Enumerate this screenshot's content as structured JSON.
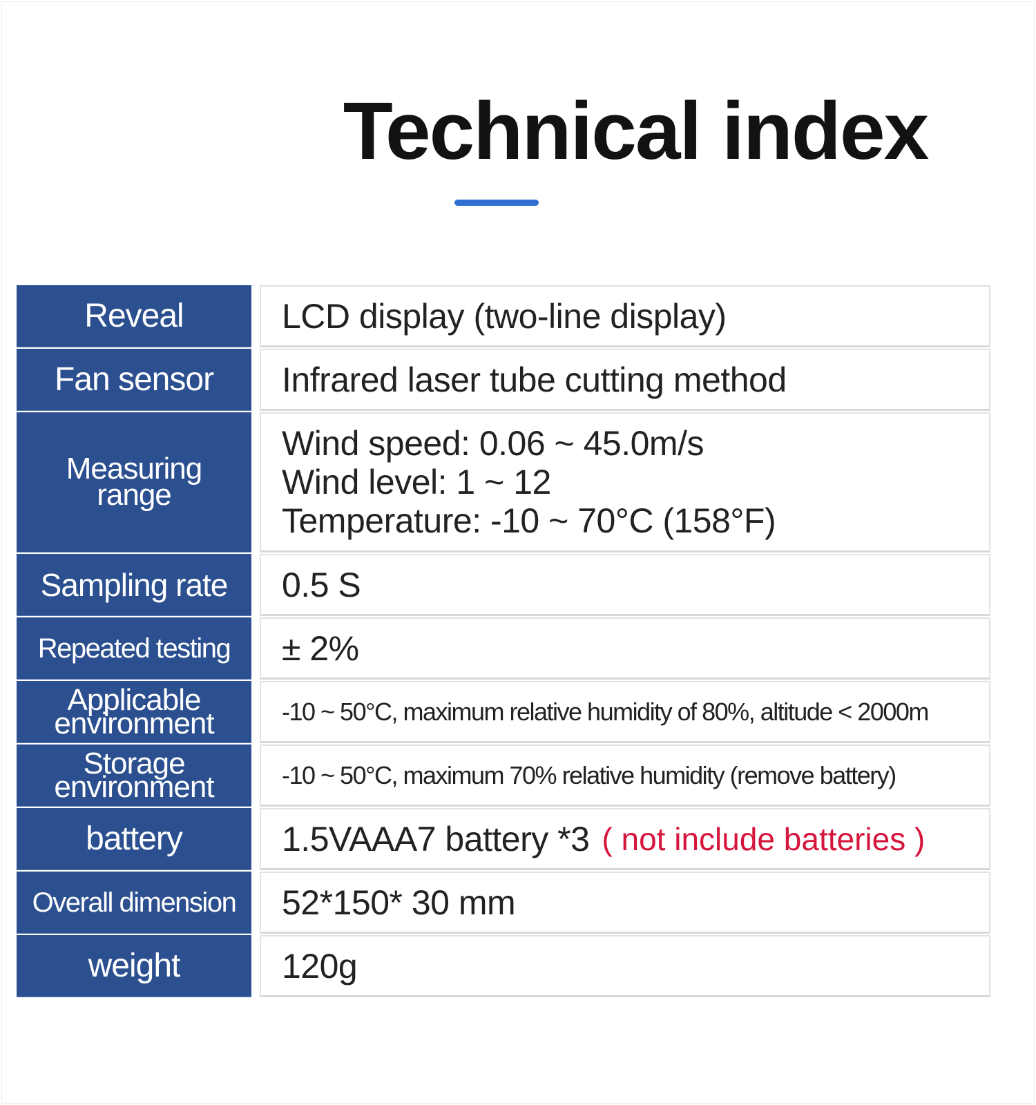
{
  "title": "Technical index",
  "rows": [
    {
      "label": "Reveal",
      "value": "LCD display (two-line display)"
    },
    {
      "label": "Fan sensor",
      "value": "Infrared laser tube cutting method"
    },
    {
      "label_lines": [
        "Measuring",
        "range"
      ],
      "value_lines": [
        "Wind speed: 0.06 ~ 45.0m/s",
        "Wind level: 1 ~ 12",
        "Temperature: -10 ~ 70°C (158°F)"
      ]
    },
    {
      "label": "Sampling rate",
      "value": "0.5 S"
    },
    {
      "label": "Repeated testing",
      "value": "± 2%"
    },
    {
      "label_lines": [
        "Applicable",
        "environment"
      ],
      "value": "-10 ~ 50°C, maximum relative humidity of 80%, altitude < 2000m"
    },
    {
      "label_lines": [
        "Storage",
        "environment"
      ],
      "value": "-10 ~ 50°C, maximum 70% relative humidity (remove battery)"
    },
    {
      "label": "battery",
      "value": "1.5VAAA7 battery *3",
      "note": "( not include batteries )"
    },
    {
      "label": "Overall dimension",
      "value": "52*150* 30 mm"
    },
    {
      "label": "weight",
      "value": "120g"
    }
  ],
  "colors": {
    "label_bg": "#2b4f8f",
    "accent_underline": "#2f6fd1",
    "note_red": "#d6153d"
  }
}
